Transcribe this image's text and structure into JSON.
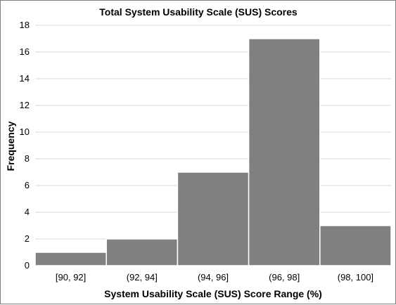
{
  "chart_data": {
    "type": "bar",
    "title": "Total System Usability Scale (SUS) Scores",
    "xlabel": "System Usability Scale (SUS) Score Range (%)",
    "ylabel": "Frequency",
    "categories": [
      "[90, 92]",
      "(92, 94]",
      "(94, 96]",
      "(96, 98]",
      "(98, 100]"
    ],
    "values": [
      1,
      2,
      7,
      17,
      3
    ],
    "ylim": [
      0,
      18
    ],
    "yticks": [
      0,
      2,
      4,
      6,
      8,
      10,
      12,
      14,
      16,
      18
    ],
    "grid": true,
    "bar_color": "#808080",
    "grid_color": "#d9d9d9"
  }
}
